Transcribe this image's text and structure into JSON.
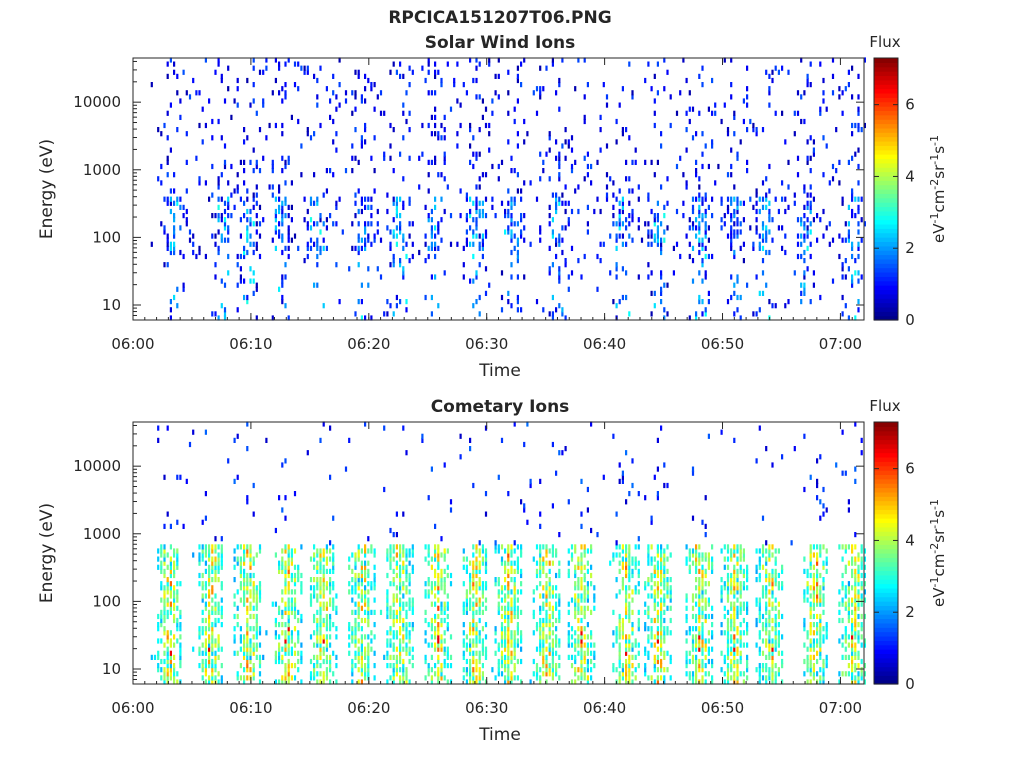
{
  "title": "RPCICA151207T06.PNG",
  "chart_data": [
    {
      "type": "heatmap",
      "title": "Solar Wind Ions",
      "xlabel": "Time",
      "ylabel": "Energy (eV)",
      "x_ticks": [
        "06:00",
        "06:10",
        "06:20",
        "06:30",
        "06:40",
        "06:50",
        "07:00"
      ],
      "x_range_minutes": [
        0,
        62
      ],
      "y_scale": "log",
      "y_ticks": [
        10,
        100,
        1000,
        10000
      ],
      "y_tick_labels": [
        "10",
        "100",
        "1000",
        "10000"
      ],
      "y_range": [
        6,
        45000
      ],
      "colorbar": {
        "label": "Flux",
        "units_label": "eV-1cm-2sr-1s-1",
        "range": [
          0,
          7.3
        ],
        "ticks": [
          0,
          2,
          4,
          6
        ],
        "colormap": "jet"
      },
      "grid": false,
      "bursts_minutes": [
        3.5,
        7.5,
        9.8,
        12.5,
        15.5,
        19.5,
        22.5,
        25.5,
        29.0,
        32.0,
        36.0,
        41.5,
        44.5,
        48.0,
        51.0,
        53.5,
        57.0,
        61.0
      ],
      "pattern": "sparse low flux (0-3) scattered from ~10 eV to ~30000 eV, densest at 100-300 eV during bursts"
    },
    {
      "type": "heatmap",
      "title": "Cometary Ions",
      "xlabel": "Time",
      "ylabel": "Energy (eV)",
      "x_ticks": [
        "06:00",
        "06:10",
        "06:20",
        "06:30",
        "06:40",
        "06:50",
        "07:00"
      ],
      "x_range_minutes": [
        0,
        62
      ],
      "y_scale": "log",
      "y_ticks": [
        10,
        100,
        1000,
        10000
      ],
      "y_tick_labels": [
        "10",
        "100",
        "1000",
        "10000"
      ],
      "y_range": [
        6,
        45000
      ],
      "colorbar": {
        "label": "Flux",
        "units_label": "eV-1cm-2sr-1s-1",
        "range": [
          0,
          7.3
        ],
        "ticks": [
          0,
          2,
          4,
          6
        ],
        "colormap": "jet"
      },
      "grid": false,
      "bursts_minutes": [
        3.0,
        6.5,
        9.7,
        13.0,
        16.0,
        19.3,
        22.5,
        25.8,
        28.9,
        31.8,
        35.0,
        38.0,
        41.8,
        44.5,
        48.0,
        51.0,
        54.0,
        57.8,
        61.0
      ],
      "pattern": "intense flux (3-7) concentrated 10-600 eV in periodic bursts, sparse points up to ~10000 eV"
    }
  ]
}
